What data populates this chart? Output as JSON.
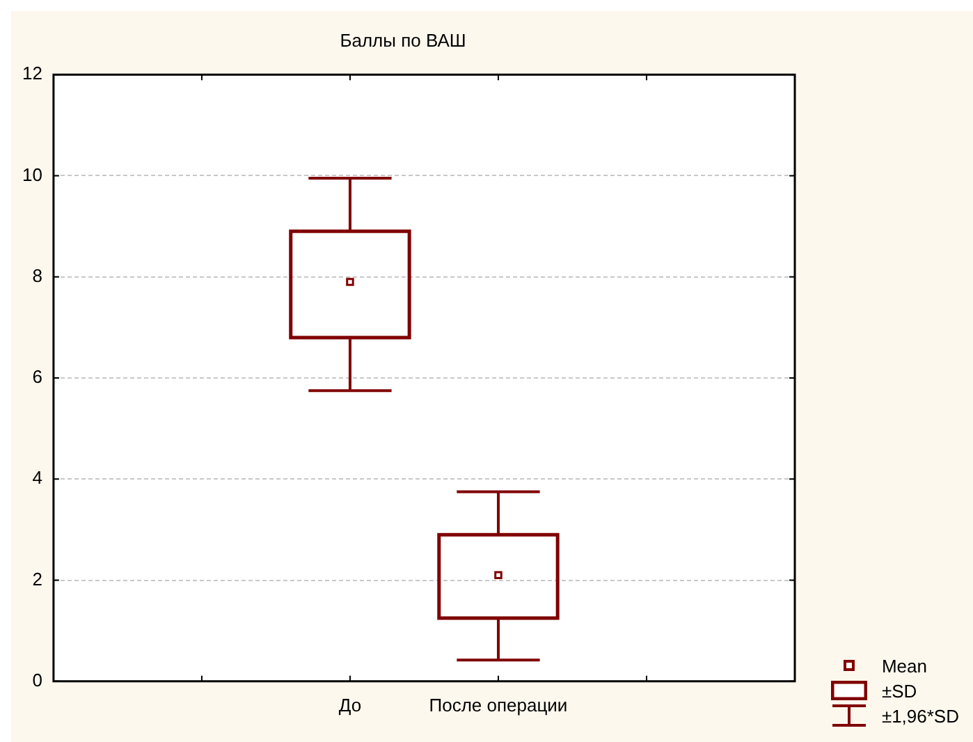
{
  "chart_data": {
    "type": "box",
    "title": "Баллы по ВАШ",
    "categories": [
      "До",
      "После операции"
    ],
    "boxes": [
      {
        "low": 5.75,
        "q1": 6.8,
        "mean": 7.9,
        "q3": 8.9,
        "high": 9.95
      },
      {
        "low": 0.42,
        "q1": 1.25,
        "mean": 2.1,
        "q3": 2.9,
        "high": 3.75
      }
    ],
    "color": "#800000",
    "ylim": [
      0,
      12
    ],
    "yticks": [
      0,
      2,
      4,
      6,
      8,
      10,
      12
    ],
    "grid": "y",
    "marker": "square",
    "annotations": [
      "Mean",
      "±SD",
      "±1,96*SD"
    ]
  }
}
